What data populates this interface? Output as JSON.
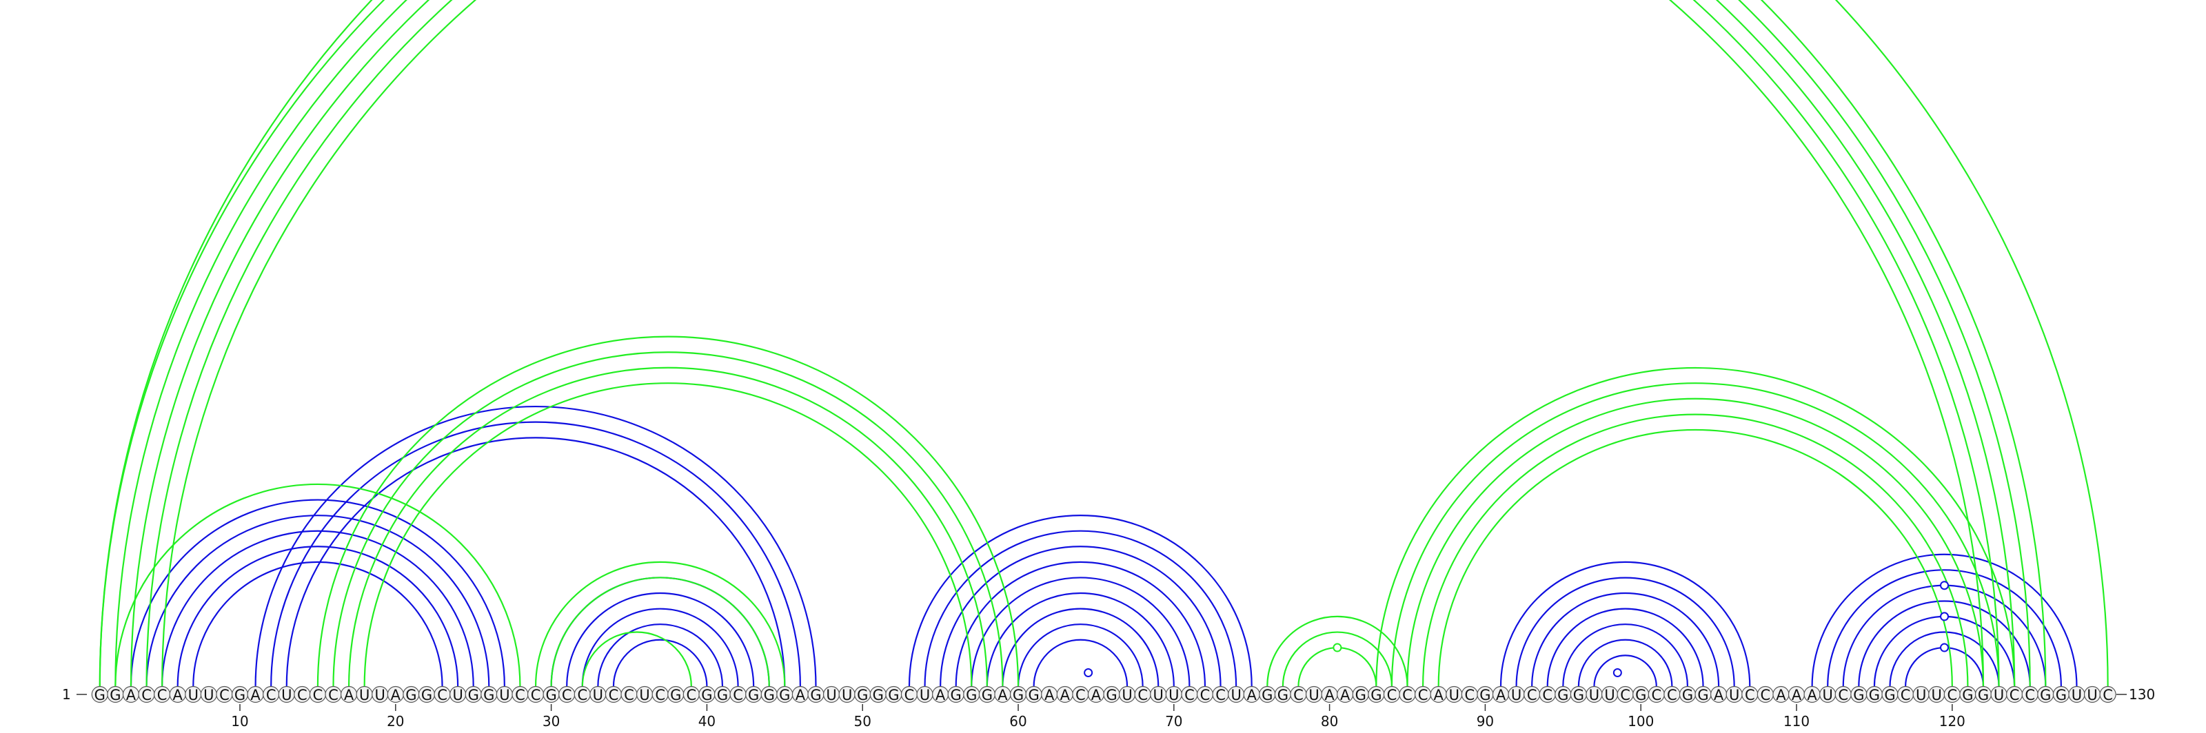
{
  "sequence": "GGACCAUUCGACUCCCAUUAGGCUGGUCCGCCUCCUCGCGGCGGGAGUUGGGCUAGGGAGGAACAGUCUUCCCUAGGCUAAGGCCCAUCGAUCCGGUUCGCCGGAUCCAAAUCGGGCUUCGGUCCGGUUC",
  "start_label": "1",
  "end_label": "130",
  "tick_labels": [
    "10",
    "20",
    "30",
    "40",
    "50",
    "60",
    "70",
    "80",
    "90",
    "100",
    "110",
    "120"
  ],
  "colors": {
    "blue": "#1010e0",
    "green": "#22ee22"
  },
  "helices": [
    {
      "color": "blue",
      "i": 3,
      "j": 27,
      "n": 5
    },
    {
      "color": "blue",
      "i": 11,
      "j": 47,
      "n": 3
    },
    {
      "color": "blue",
      "i": 30,
      "j": 44,
      "n": 5
    },
    {
      "color": "blue",
      "i": 53,
      "j": 75,
      "n": 9
    },
    {
      "color": "blue",
      "i": 91,
      "j": 107,
      "n": 7
    },
    {
      "color": "blue",
      "i": 111,
      "j": 128,
      "n": 7
    },
    {
      "color": "green",
      "i": 1,
      "j": 126,
      "n": 5
    },
    {
      "color": "green",
      "i": 2,
      "j": 28,
      "n": 1
    },
    {
      "color": "green",
      "i": 15,
      "j": 60,
      "n": 4
    },
    {
      "color": "green",
      "i": 29,
      "j": 45,
      "n": 2
    },
    {
      "color": "green",
      "i": 32,
      "j": 39,
      "n": 1
    },
    {
      "color": "green",
      "i": 76,
      "j": 85,
      "n": 3
    },
    {
      "color": "green",
      "i": 83,
      "j": 124,
      "n": 5
    },
    {
      "color": "green",
      "i": 1,
      "j": 130,
      "n": 1
    }
  ],
  "markers": [
    {
      "color": "blue",
      "pos": 64.5
    },
    {
      "color": "green",
      "pos": 80.5
    },
    {
      "color": "blue",
      "pos": 98.5
    },
    {
      "color": "blue",
      "pos": 119.5
    },
    {
      "color": "blue",
      "pos": 119.5
    },
    {
      "color": "blue",
      "pos": 119.5
    }
  ]
}
